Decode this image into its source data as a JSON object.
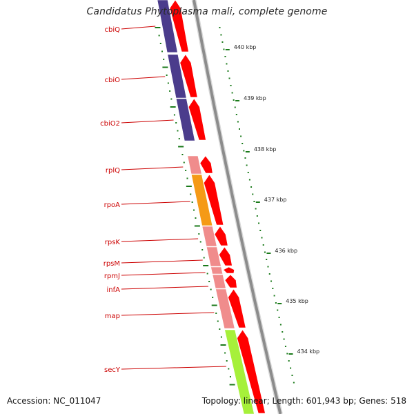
{
  "title": "Candidatus Phytoplasma mali, complete genome",
  "footer": {
    "accession": "Accession: NC_011047",
    "summary": "Topology: linear; Length: 601,943 bp; Genes: 518"
  },
  "colors": {
    "gene_label": "#cc0000",
    "arrow": "#ff0000",
    "backbone": "#8c8c8c",
    "tick": "#1a7a1a"
  },
  "genes": [
    {
      "name": "cbiQ",
      "block_color": "#4b3c8c"
    },
    {
      "name": "cbiO",
      "block_color": "#4b3c8c"
    },
    {
      "name": "cbiO2",
      "block_color": "#4b3c8c"
    },
    {
      "name": "rplQ",
      "block_color": "#f08c8c"
    },
    {
      "name": "rpoA",
      "block_color": "#f59a16"
    },
    {
      "name": "rpsK",
      "block_color": "#f08c8c"
    },
    {
      "name": "rpsM",
      "block_color": "#f08c8c"
    },
    {
      "name": "rpmJ",
      "block_color": "#f08c8c"
    },
    {
      "name": "infA",
      "block_color": "#f08c8c"
    },
    {
      "name": "map",
      "block_color": "#f08c8c"
    },
    {
      "name": "secY",
      "block_color": "#a6f03a"
    }
  ],
  "kbp_ticks": [
    {
      "label": "440 kbp"
    },
    {
      "label": "439 kbp"
    },
    {
      "label": "438 kbp"
    },
    {
      "label": "437 kbp"
    },
    {
      "label": "436 kbp"
    },
    {
      "label": "435 kbp"
    },
    {
      "label": "434 kbp"
    }
  ]
}
